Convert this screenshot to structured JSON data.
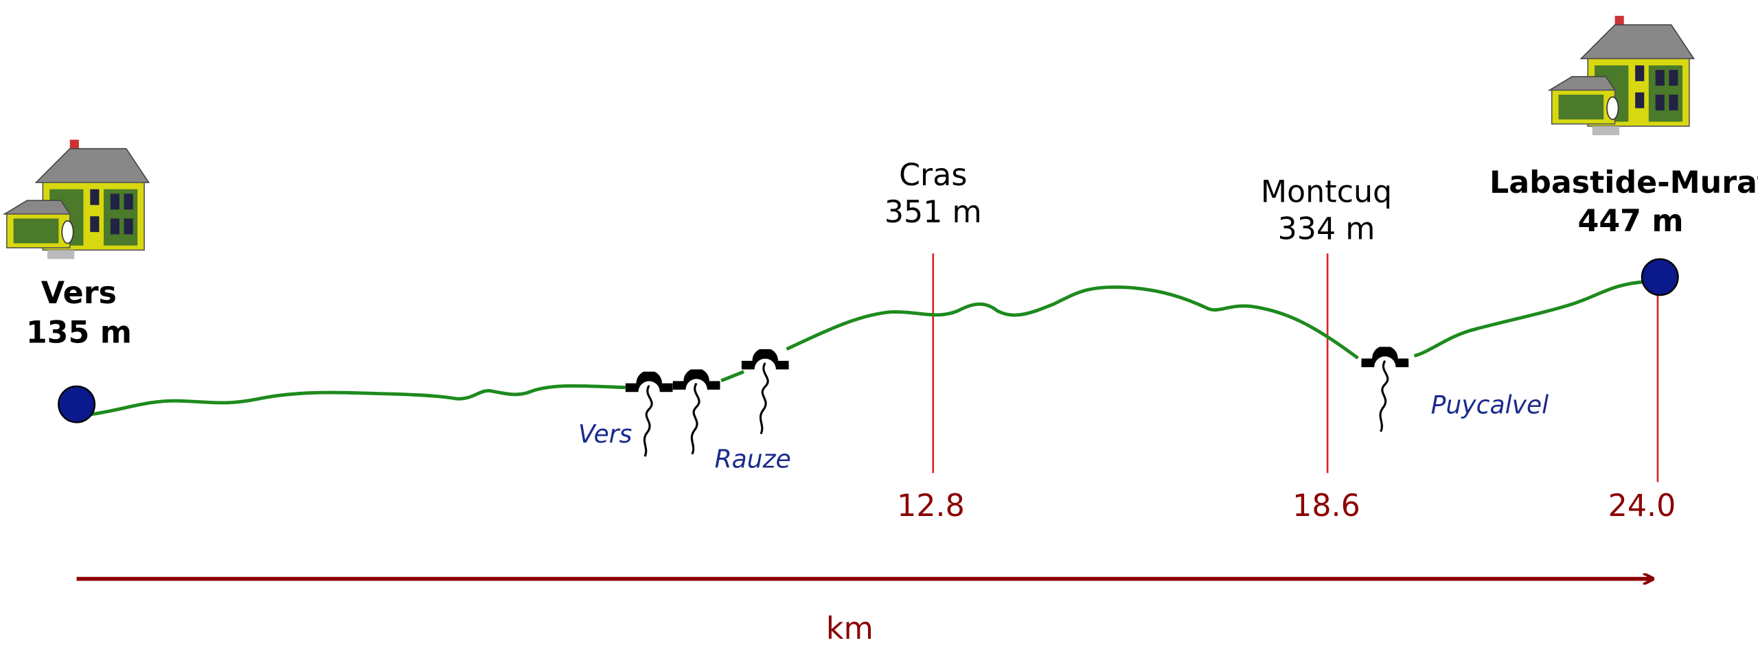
{
  "start": {
    "name": "Vers",
    "elevation": "135 m"
  },
  "waypoints": [
    {
      "name": "Cras",
      "elevation": "351 m",
      "km": "12.8"
    },
    {
      "name": "Montcuq",
      "elevation": "334 m",
      "km": "18.6"
    }
  ],
  "end": {
    "name": "Labastide-Murat",
    "elevation": "447 m",
    "km": "24.0"
  },
  "rivers": [
    "Vers",
    "Rauze",
    "Puycalvel"
  ],
  "axis_label": "km"
}
